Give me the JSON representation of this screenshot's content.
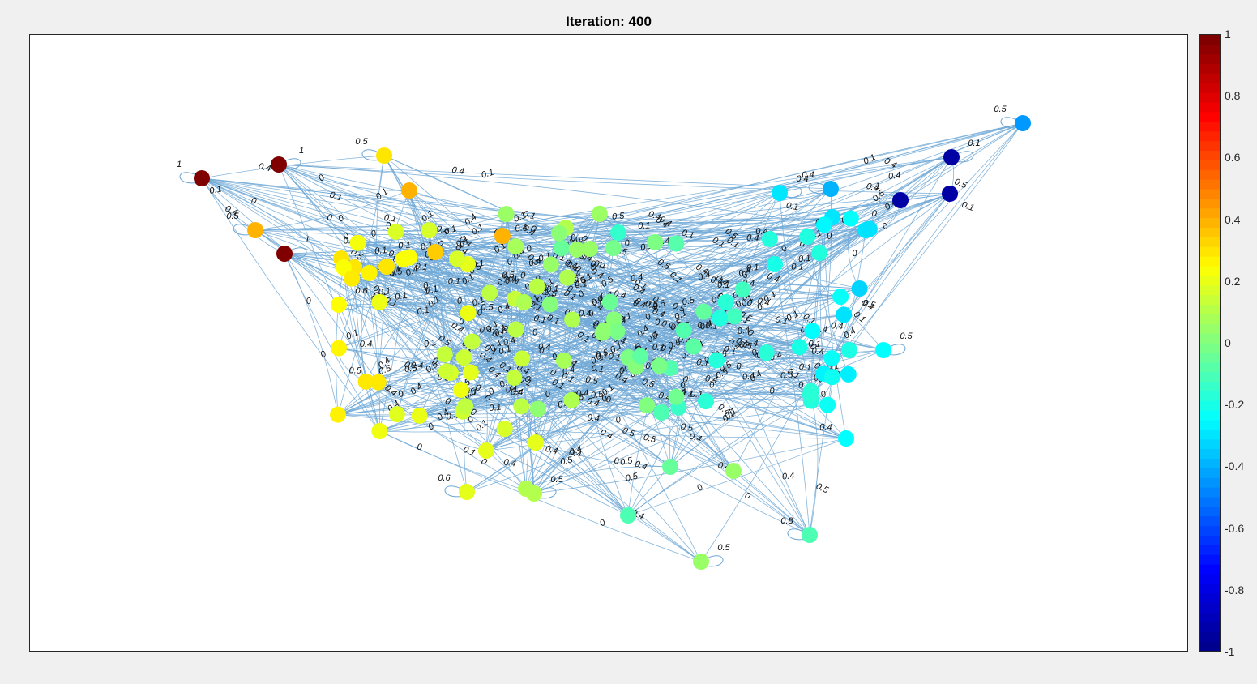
{
  "title": "Iteration: 400",
  "colorbar": {
    "ticks": [
      "1",
      "0.8",
      "0.6",
      "0.4",
      "0.2",
      "0",
      "-0.2",
      "-0.4",
      "-0.6",
      "-0.8",
      "-1"
    ],
    "min": -1,
    "max": 1,
    "colormap": [
      "#00008f",
      "#0000ff",
      "#0080ff",
      "#00ffff",
      "#80ff80",
      "#ffff00",
      "#ff8000",
      "#ff0000",
      "#800000"
    ]
  },
  "chart_data": {
    "type": "network-graph",
    "title": "Iteration: 400",
    "color_scale": "jet",
    "edge_color": "#6fa8d6",
    "nodes_with_self_loop_labels": [
      {
        "color": "#800000",
        "label": "1"
      },
      {
        "color": "#800000",
        "label": "1"
      },
      {
        "color": "#ffa500",
        "label": "0.5"
      },
      {
        "color": "#800000",
        "label": "1"
      },
      {
        "color": "#ffd700",
        "label": "0.5"
      },
      {
        "color": "#ffff00",
        "label": "0.6"
      },
      {
        "color": "#00aaff",
        "label": "0.5"
      },
      {
        "color": "#000080",
        "label": "0.1"
      },
      {
        "color": "#000080",
        "label": "1"
      },
      {
        "color": "#00bfff",
        "label": "0.4"
      },
      {
        "color": "#00ffff",
        "label": "0.4"
      },
      {
        "color": "#40ffc0",
        "label": "0.5"
      },
      {
        "color": "#40ffc0",
        "label": "0.8"
      },
      {
        "color": "#a0ff50",
        "label": "0.5"
      },
      {
        "color": "#ffff00",
        "label": "0.6"
      },
      {
        "color": "#a0ff50",
        "label": "0.5"
      }
    ],
    "visible_edge_weights": [
      "0",
      "0.1",
      "0.4",
      "0.5",
      "0.6",
      "1"
    ]
  }
}
